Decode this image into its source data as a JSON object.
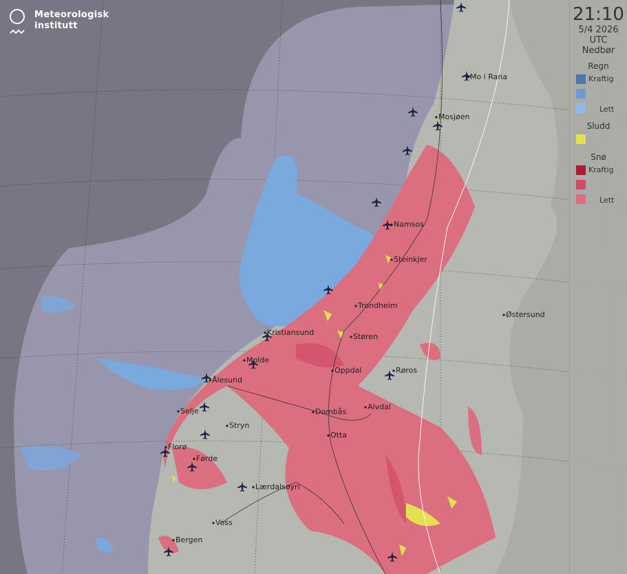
{
  "logo": {
    "line1": "Meteorologisk",
    "line2": "institutt"
  },
  "legend": {
    "time": "21:10",
    "date": "5/4 2026",
    "timezone": "UTC",
    "title": "Nedbør",
    "rain": {
      "label": "Regn",
      "strong": "Kraftig",
      "light": "Lett",
      "colors": [
        "#4e78a8",
        "#6d9bd3",
        "#8fbbe9"
      ]
    },
    "sleet": {
      "label": "Sludd",
      "colors": [
        "#e4e050"
      ]
    },
    "snow": {
      "label": "Snø",
      "strong": "Kraftig",
      "light": "Lett",
      "colors": [
        "#a91c36",
        "#cf4c66",
        "#dc6f7f"
      ]
    }
  },
  "cities": [
    {
      "name": "Mo i Rana"
    },
    {
      "name": "Mosjøen"
    },
    {
      "name": "Namsos"
    },
    {
      "name": "Steinkjer"
    },
    {
      "name": "Trondheim"
    },
    {
      "name": "Kristiansund"
    },
    {
      "name": "Støren"
    },
    {
      "name": "Molde"
    },
    {
      "name": "Ålesund"
    },
    {
      "name": "Oppdal"
    },
    {
      "name": "Røros"
    },
    {
      "name": "Østersund"
    },
    {
      "name": "Selje"
    },
    {
      "name": "Stryn"
    },
    {
      "name": "Dombås"
    },
    {
      "name": "Alvdal"
    },
    {
      "name": "Otta"
    },
    {
      "name": "Florø"
    },
    {
      "name": "Førde"
    },
    {
      "name": "Lærdalsøyri"
    },
    {
      "name": "Voss"
    },
    {
      "name": "Bergen"
    }
  ],
  "colors": {
    "background": "#787585",
    "radar_coverage": "#9796ad",
    "land": "#b6b9b2",
    "rain": "#7aa9de",
    "snow": "#dc6f7f",
    "sleet": "#e4e050"
  }
}
